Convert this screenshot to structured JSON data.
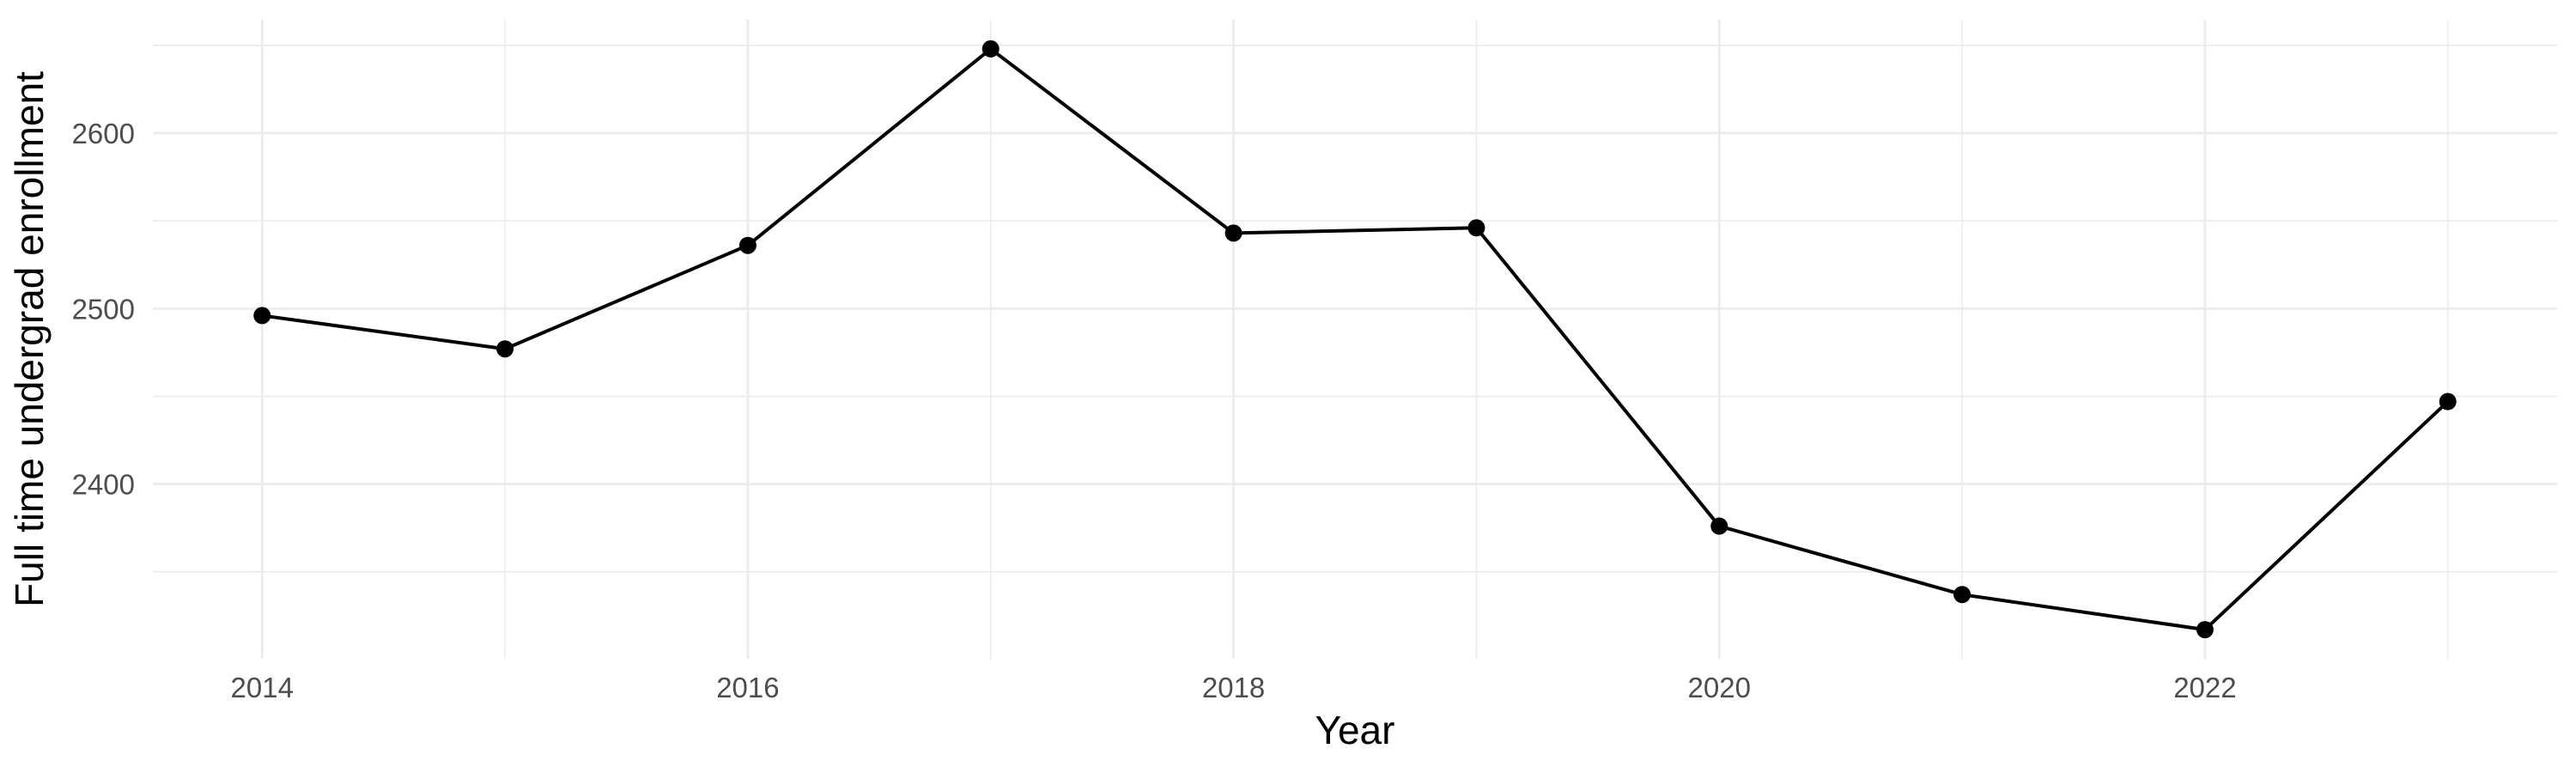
{
  "chart_data": {
    "type": "line",
    "title": "",
    "xlabel": "Year",
    "ylabel": "Full time undergrad enrollment",
    "x": [
      2014,
      2015,
      2016,
      2017,
      2018,
      2019,
      2020,
      2021,
      2022,
      2023
    ],
    "series": [
      {
        "name": "Full time undergrad enrollment",
        "values": [
          2496,
          2477,
          2536,
          2648,
          2543,
          2546,
          2376,
          2337,
          2317,
          2447
        ]
      }
    ],
    "x_major_ticks": [
      2014,
      2016,
      2018,
      2020,
      2022
    ],
    "x_minor_gridlines": [
      2015,
      2017,
      2019,
      2021,
      2023
    ],
    "y_major_ticks": [
      2400,
      2500,
      2600
    ],
    "y_minor_gridlines": [
      2350,
      2450,
      2550,
      2650
    ],
    "xlim": [
      2013.55,
      2023.45
    ],
    "ylim": [
      2300.4,
      2664.6
    ],
    "grid": "on",
    "legend": "none",
    "colors": {
      "line": "#000000",
      "point": "#000000",
      "gridline": "#EBEBEB",
      "tick_label": "#4D4D4D",
      "axis_title": "#000000",
      "background": "#FFFFFF"
    }
  }
}
